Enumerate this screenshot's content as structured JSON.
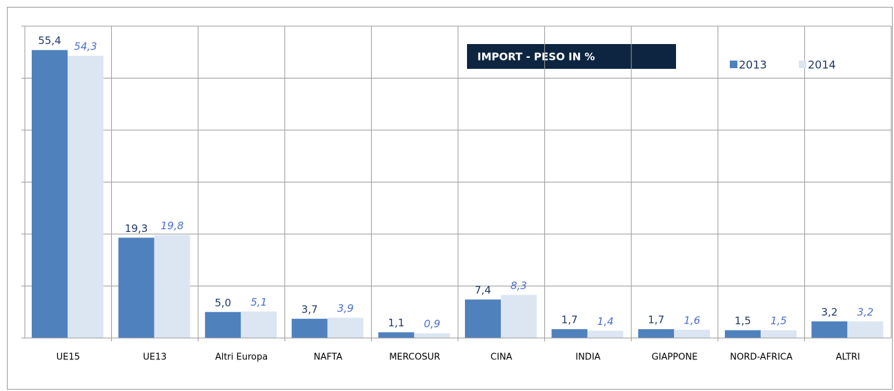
{
  "chart_data": {
    "type": "bar",
    "title": "IMPORT - PESO IN %",
    "categories": [
      "UE15",
      "UE13",
      "Altri Europa",
      "NAFTA",
      "MERCOSUR",
      "CINA",
      "INDIA",
      "GIAPPONE",
      "NORD-AFRICA",
      "ALTRI"
    ],
    "series": [
      {
        "name": "2013",
        "color": "#4f81bd",
        "label_color": "#1f3864",
        "values": [
          55.4,
          19.3,
          5.0,
          3.7,
          1.1,
          7.4,
          1.7,
          1.7,
          1.5,
          3.2
        ],
        "value_labels": [
          "55,4",
          "19,3",
          "5,0",
          "3,7",
          "1,1",
          "7,4",
          "1,7",
          "1,7",
          "1,5",
          "3,2"
        ]
      },
      {
        "name": "2014",
        "color": "#dce6f2",
        "label_color": "#4a6fcf",
        "values": [
          54.3,
          19.8,
          5.1,
          3.9,
          0.9,
          8.3,
          1.4,
          1.6,
          1.5,
          3.2
        ],
        "value_labels": [
          "54,3",
          "19,8",
          "5,1",
          "3,9",
          "0,9",
          "8,3",
          "1,4",
          "1,6",
          "1,5",
          "3,2"
        ]
      }
    ],
    "ylim": [
      0,
      60
    ],
    "yticks": [
      0,
      10,
      20,
      30,
      40,
      50,
      60
    ],
    "grid": true
  }
}
